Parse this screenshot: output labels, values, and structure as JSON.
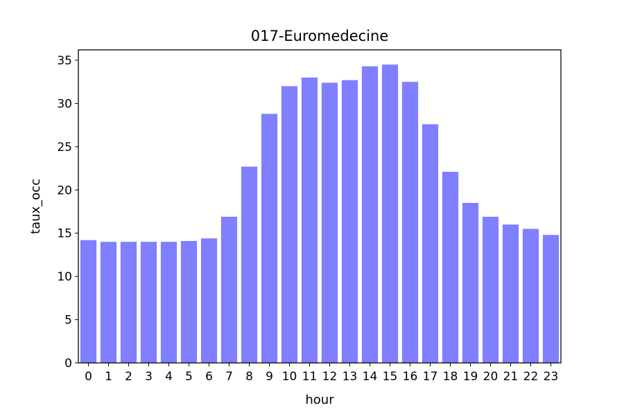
{
  "chart_data": {
    "type": "bar",
    "title": "017-Euromedecine",
    "xlabel": "hour",
    "ylabel": "taux_occ",
    "categories": [
      "0",
      "1",
      "2",
      "3",
      "4",
      "5",
      "6",
      "7",
      "8",
      "9",
      "10",
      "11",
      "12",
      "13",
      "14",
      "15",
      "16",
      "17",
      "18",
      "19",
      "20",
      "21",
      "22",
      "23"
    ],
    "values": [
      14.2,
      14.0,
      14.0,
      14.0,
      14.0,
      14.1,
      14.4,
      16.9,
      22.7,
      28.8,
      32.0,
      33.0,
      32.4,
      32.7,
      34.3,
      34.5,
      32.5,
      27.6,
      22.1,
      18.5,
      16.9,
      16.0,
      15.5,
      14.8
    ],
    "yticks": [
      0,
      5,
      10,
      15,
      20,
      25,
      30,
      35
    ],
    "ylim": [
      0,
      36.2
    ],
    "bar_color": "#7f7fff",
    "grid": false
  }
}
